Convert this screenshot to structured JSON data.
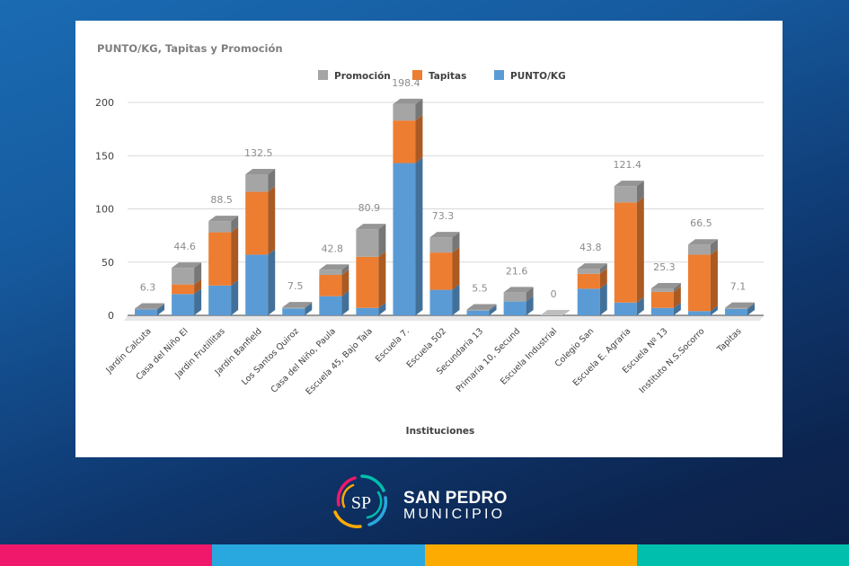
{
  "chart_data": {
    "type": "bar",
    "stacked": true,
    "three_d": true,
    "title": "PUNTO/KG, Tapitas y Promoción",
    "xlabel": "Instituciones",
    "ylabel": "",
    "ylim": [
      0,
      200
    ],
    "yticks": [
      0,
      50,
      100,
      150,
      200
    ],
    "grid": true,
    "legend_position": "top-center",
    "categories": [
      "Jardin Calcuta",
      "Casa del Niño El",
      "Jardin Frutillitas",
      "Jardin Banfield",
      "Los Santos Quiroz",
      "Casa del Niño, Paula",
      "Escuela 45, Bajo Tala",
      "Escuela 7.",
      "Escuela 502",
      "Secundaria 13",
      "Primaria 10, Secund",
      "Escuela Industrial",
      "Colegio San",
      "Escuela E. Agraria",
      "Escuela Nº 13",
      "Instituto N.S.Socorro",
      "Tapitas"
    ],
    "series": [
      {
        "name": "PUNTO/KG",
        "color": "#5b9bd5",
        "values": [
          5.5,
          20,
          28,
          57,
          6.5,
          18,
          7,
          143,
          24,
          4.5,
          13,
          0,
          25,
          12,
          7,
          4,
          6
        ]
      },
      {
        "name": "Tapitas",
        "color": "#ed7d31",
        "values": [
          0,
          9,
          50,
          59,
          0,
          20,
          48,
          40,
          35,
          0,
          0,
          0,
          14,
          94,
          15,
          53,
          0
        ]
      },
      {
        "name": "Promoción",
        "color": "#a5a5a5",
        "values": [
          0.8,
          15.6,
          10.5,
          16.5,
          1,
          4.8,
          25.9,
          15.4,
          14.3,
          1,
          8.6,
          0,
          4.8,
          15.4,
          3.3,
          9.5,
          1.1
        ]
      }
    ],
    "legend_order": [
      "Promoción",
      "Tapitas",
      "PUNTO/KG"
    ],
    "totals_labels": [
      "6.3",
      "44.6",
      "88.5",
      "132.5",
      "7.5",
      "42.8",
      "80.9",
      "198.4",
      "73.3",
      "5.5",
      "21.6",
      "0",
      "43.8",
      "121.4",
      "25.3",
      "66.5",
      "7.1"
    ]
  },
  "branding": {
    "logo_initials": "SP",
    "name_line1": "SAN PEDRO",
    "name_line2": "MUNICIPIO",
    "stripe_colors": [
      "#f0186a",
      "#29a8df",
      "#fdab00",
      "#00bfad"
    ]
  }
}
